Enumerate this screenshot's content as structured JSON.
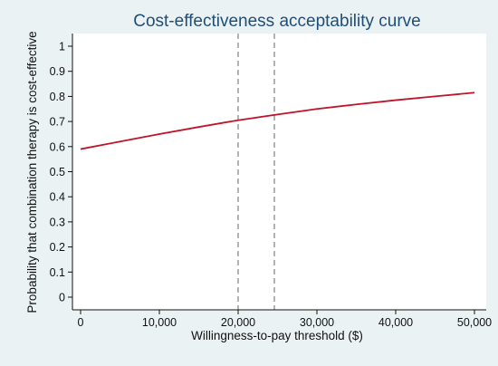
{
  "chart_data": {
    "type": "line",
    "title": "Cost-effectiveness acceptability curve",
    "xlabel": "Willingness-to-pay threshold ($)",
    "ylabel": "Probability that combination therapy is cost-effective",
    "xlim": [
      0,
      50000
    ],
    "ylim": [
      0,
      1
    ],
    "x_ticks": [
      0,
      10000,
      20000,
      30000,
      40000,
      50000
    ],
    "x_tick_labels": [
      "0",
      "10,000",
      "20,000",
      "30,000",
      "40,000",
      "50,000"
    ],
    "y_ticks": [
      0,
      0.1,
      0.2,
      0.3,
      0.4,
      0.5,
      0.6,
      0.7,
      0.8,
      0.9,
      1
    ],
    "y_tick_labels": [
      "0",
      "0.1",
      "0.2",
      "0.3",
      "0.4",
      "0.5",
      "0.6",
      "0.7",
      "0.8",
      "0.9",
      "1"
    ],
    "grid": false,
    "legend": "none",
    "series": [
      {
        "color": "#c0142a",
        "x": [
          0,
          5000,
          10000,
          15000,
          20000,
          25000,
          30000,
          35000,
          40000,
          45000,
          50000
        ],
        "y": [
          0.59,
          0.62,
          0.65,
          0.678,
          0.705,
          0.728,
          0.75,
          0.768,
          0.785,
          0.8,
          0.815
        ]
      }
    ],
    "reference_lines": [
      {
        "orientation": "vertical",
        "x": 20000,
        "style": "dashed",
        "color": "#8a8a8a"
      },
      {
        "orientation": "vertical",
        "x": 24600,
        "style": "dashed",
        "color": "#8a8a8a"
      }
    ],
    "colors": {
      "background": "#eaf2f3",
      "plot_area": "#ffffff",
      "title": "#1f4e79",
      "axis": "#111111"
    }
  }
}
